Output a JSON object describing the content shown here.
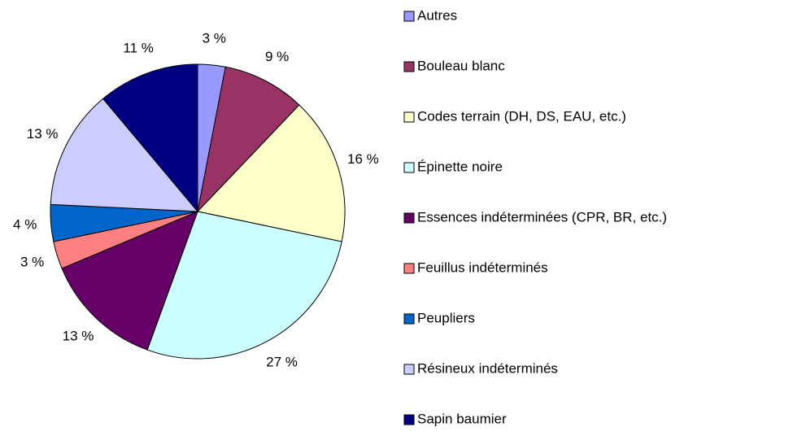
{
  "chart_data": {
    "type": "pie",
    "categories": [
      "Autres",
      "Bouleau blanc",
      "Codes terrain (DH, DS, EAU, etc.)",
      "Épinette noire",
      "Essences indéterminées (CPR, BR, etc.)",
      "Feuillus indéterminés",
      "Peupliers",
      "Résineux indéterminés",
      "Sapin baumier"
    ],
    "values": [
      3,
      9,
      16,
      27,
      13,
      3,
      4,
      13,
      11
    ],
    "value_labels": [
      "3 %",
      "9 %",
      "16 %",
      "27 %",
      "13 %",
      "3 %",
      "4 %",
      "13 %",
      "11 %"
    ],
    "colors": [
      "#9999ff",
      "#993366",
      "#ffffcc",
      "#ccffff",
      "#660066",
      "#ff8080",
      "#0066cc",
      "#ccccff",
      "#000080"
    ],
    "legend": "right"
  }
}
